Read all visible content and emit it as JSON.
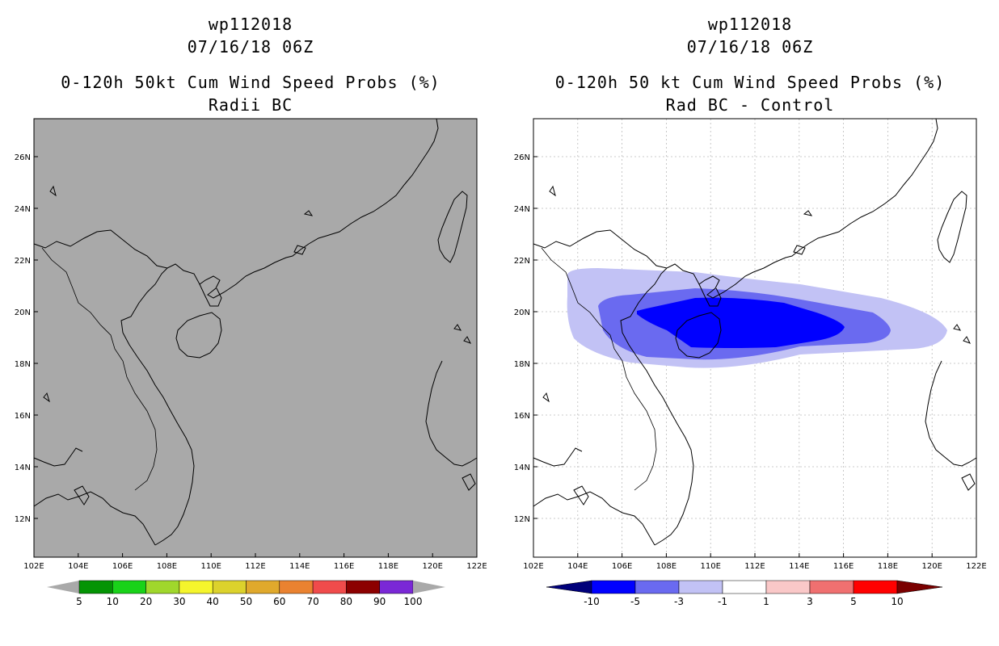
{
  "left_panel": {
    "storm_id": "wp112018",
    "datetime": "07/16/18 06Z",
    "title": "0-120h 50kt Cum Wind Speed Probs (%)",
    "subtitle": "Radii BC",
    "background_color": "#a9a9a9",
    "colorbar": {
      "labels": [
        "5",
        "10",
        "20",
        "30",
        "40",
        "50",
        "60",
        "70",
        "80",
        "90",
        "100"
      ],
      "colors": [
        "#049404",
        "#19d219",
        "#a0d72c",
        "#f5f52c",
        "#dcd22c",
        "#e0a92c",
        "#ea8230",
        "#f04b4b",
        "#8c0000",
        "#7a28d6"
      ],
      "end_color": "#a9a9a9"
    }
  },
  "right_panel": {
    "storm_id": "wp112018",
    "datetime": "07/16/18 06Z",
    "title": "0-120h 50 kt Cum Wind Speed Probs (%)",
    "subtitle": "Rad BC - Control",
    "colorbar": {
      "labels": [
        "-10",
        "-5",
        "-3",
        "-1",
        "1",
        "3",
        "5",
        "10"
      ],
      "colors": [
        "#0000ff",
        "#6a6af0",
        "#c2c2f5",
        "#ffffff",
        "#fac8c8",
        "#f07070",
        "#ff0000"
      ],
      "left_end_color": "#00007a",
      "right_end_color": "#7a0000"
    }
  },
  "map": {
    "lat_ticks": [
      "26N",
      "24N",
      "22N",
      "20N",
      "18N",
      "16N",
      "14N",
      "12N"
    ],
    "lon_ticks": [
      "102E",
      "104E",
      "106E",
      "108E",
      "110E",
      "112E",
      "114E",
      "116E",
      "118E",
      "120E",
      "122E"
    ]
  }
}
